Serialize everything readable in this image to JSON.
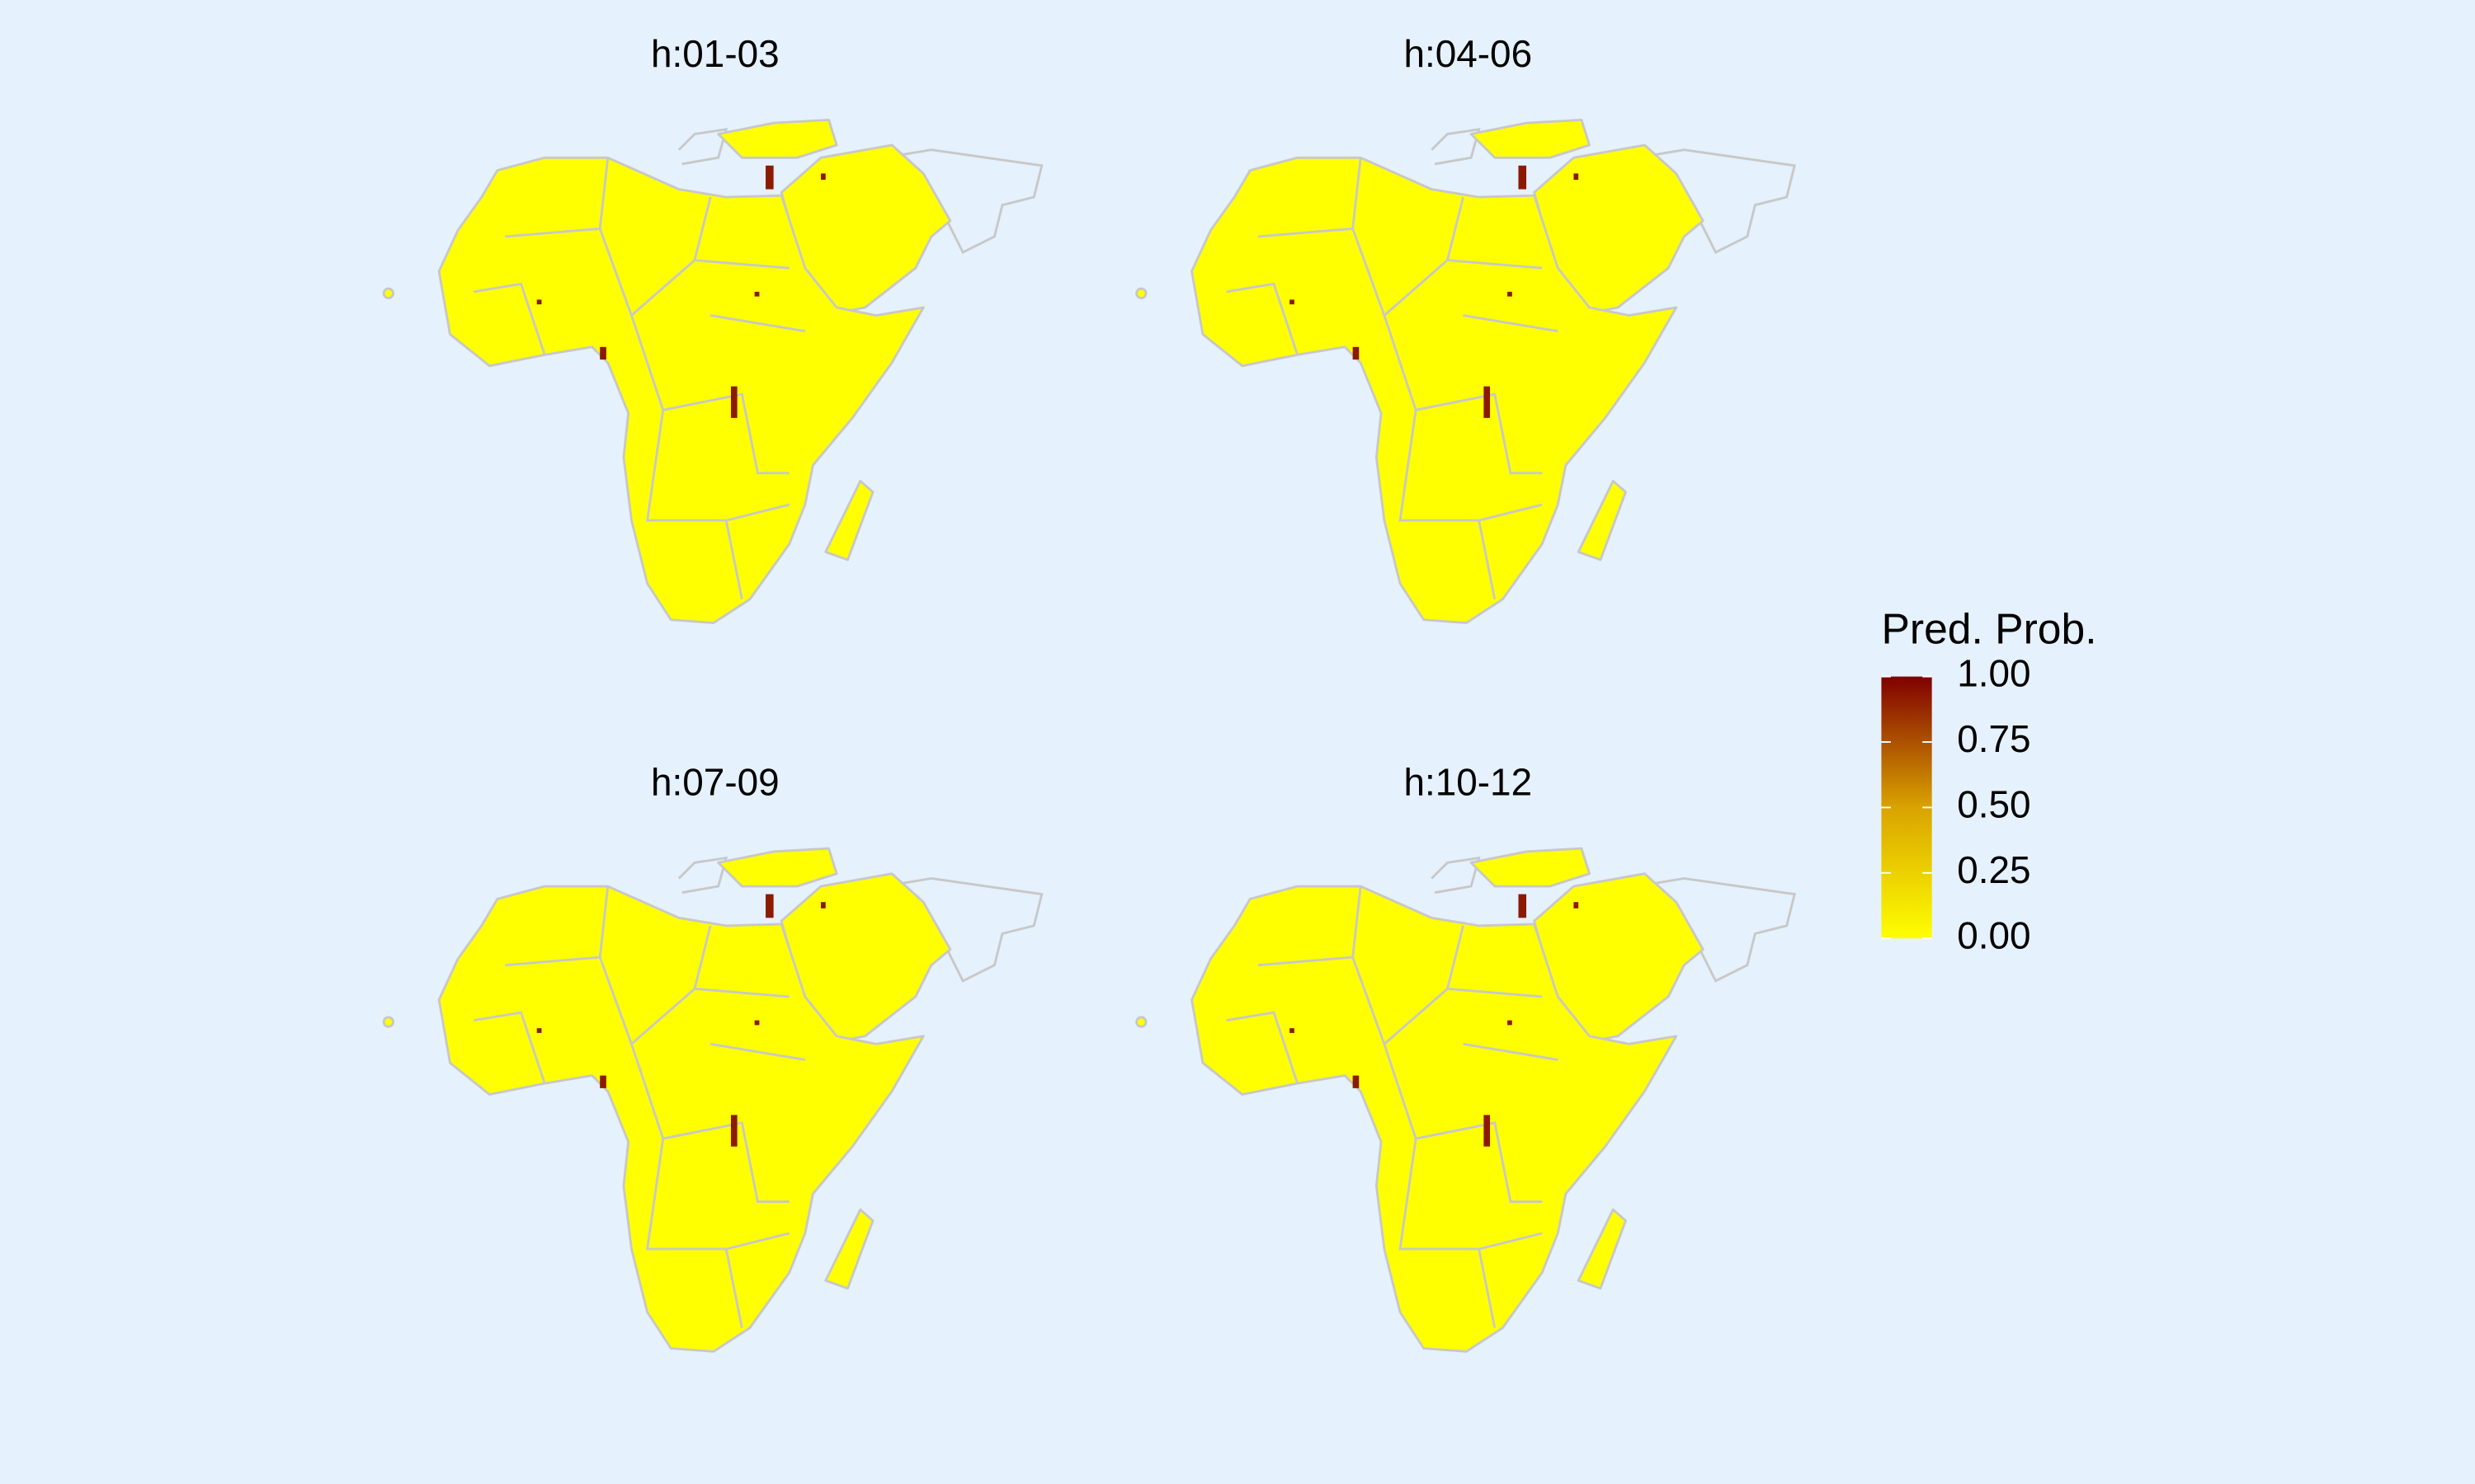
{
  "panels": [
    {
      "title": "h:01-03"
    },
    {
      "title": "h:04-06"
    },
    {
      "title": "h:07-09"
    },
    {
      "title": "h:10-12"
    }
  ],
  "legend": {
    "title": "Pred. Prob.",
    "lim": [
      0,
      1
    ],
    "colors": [
      "#ffff00",
      "#d9a300",
      "#800000"
    ],
    "ticks": [
      {
        "value": 0,
        "label": "0.00"
      },
      {
        "value": 0.25,
        "label": "0.25"
      },
      {
        "value": 0.5,
        "label": "0.50"
      },
      {
        "value": 0.75,
        "label": "0.75"
      },
      {
        "value": 1,
        "label": "1.00"
      }
    ]
  }
}
